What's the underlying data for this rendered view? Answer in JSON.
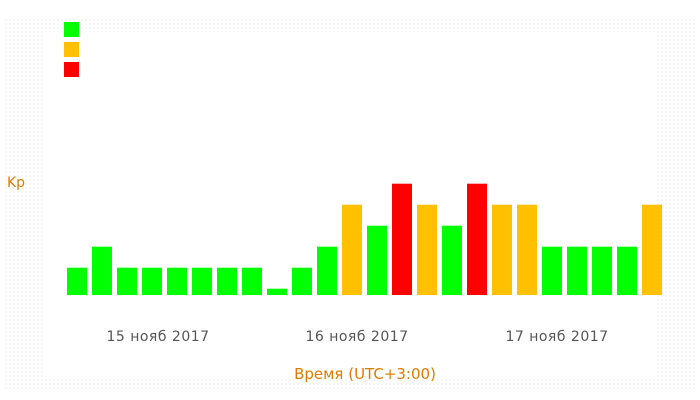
{
  "legend": {
    "items": [
      {
        "label": "",
        "color": "#00ff00"
      },
      {
        "label": "",
        "color": "#ffc000"
      },
      {
        "label": "",
        "color": "#ff0000"
      }
    ]
  },
  "chart_data": {
    "type": "bar",
    "title": "",
    "xlabel": "Время (UTC+3:00)",
    "ylabel": "Kp",
    "ylim": [
      0,
      9
    ],
    "grid": false,
    "legend_position": "top-left",
    "date_labels": [
      "15 нояб 2017",
      "16 нояб 2017",
      "17 нояб 2017"
    ],
    "values": [
      1.3,
      2.3,
      1.3,
      1.3,
      1.3,
      1.3,
      1.3,
      1.3,
      0.3,
      1.3,
      2.3,
      4.3,
      3.3,
      5.3,
      4.3,
      3.3,
      5.3,
      4.3,
      4.3,
      2.3,
      2.3,
      2.3,
      2.3,
      4.3
    ],
    "colors": [
      "#00ff00",
      "#00ff00",
      "#00ff00",
      "#00ff00",
      "#00ff00",
      "#00ff00",
      "#00ff00",
      "#00ff00",
      "#00ff00",
      "#00ff00",
      "#00ff00",
      "#ffc000",
      "#00ff00",
      "#ff0000",
      "#ffc000",
      "#00ff00",
      "#ff0000",
      "#ffc000",
      "#ffc000",
      "#00ff00",
      "#00ff00",
      "#00ff00",
      "#00ff00",
      "#ffc000"
    ]
  }
}
